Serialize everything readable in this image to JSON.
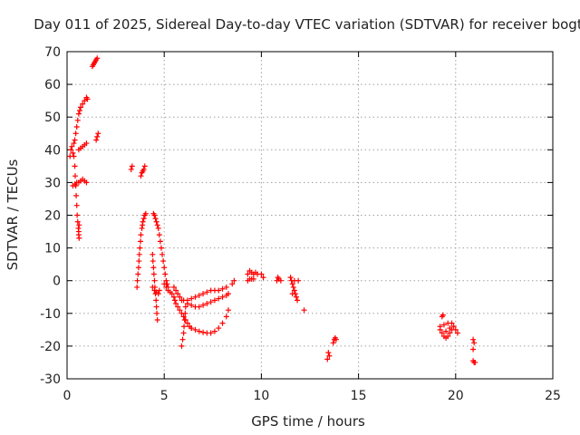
{
  "chart_data": {
    "type": "scatter",
    "title": "Day 011 of 2025, Sidereal Day-to-day VTEC variation (SDTVAR) for receiver bogt",
    "xlabel": "GPS time / hours",
    "ylabel": "SDTVAR / TECUs",
    "xlim": [
      0,
      25
    ],
    "ylim": [
      -30,
      70
    ],
    "xticks": [
      0,
      5,
      10,
      15,
      20,
      25
    ],
    "yticks": [
      -30,
      -20,
      -10,
      0,
      10,
      20,
      30,
      40,
      50,
      60,
      70
    ],
    "grid": true,
    "marker": "plus",
    "color": "#ff0000",
    "series": [
      {
        "name": "SDTVAR",
        "points": [
          [
            0.15,
            38
          ],
          [
            0.2,
            40
          ],
          [
            0.25,
            41
          ],
          [
            0.3,
            39
          ],
          [
            0.35,
            42
          ],
          [
            0.4,
            43
          ],
          [
            0.45,
            45
          ],
          [
            0.5,
            47
          ],
          [
            0.55,
            49
          ],
          [
            0.6,
            51
          ],
          [
            0.65,
            52
          ],
          [
            0.7,
            53
          ],
          [
            0.8,
            54
          ],
          [
            0.9,
            55
          ],
          [
            1.0,
            56
          ],
          [
            1.05,
            55.5
          ],
          [
            0.35,
            38
          ],
          [
            0.4,
            35
          ],
          [
            0.42,
            32
          ],
          [
            0.45,
            29
          ],
          [
            0.47,
            26
          ],
          [
            0.5,
            23
          ],
          [
            0.52,
            20
          ],
          [
            0.55,
            18
          ],
          [
            0.58,
            16
          ],
          [
            0.6,
            15
          ],
          [
            0.6,
            14
          ],
          [
            0.62,
            13
          ],
          [
            0.62,
            17
          ],
          [
            0.6,
            40
          ],
          [
            0.7,
            40.5
          ],
          [
            0.8,
            41
          ],
          [
            0.9,
            41.5
          ],
          [
            1.0,
            42
          ],
          [
            0.3,
            29
          ],
          [
            0.4,
            29.5
          ],
          [
            0.5,
            30
          ],
          [
            0.6,
            30
          ],
          [
            0.7,
            30.5
          ],
          [
            0.8,
            31
          ],
          [
            0.9,
            30.5
          ],
          [
            1.0,
            30
          ],
          [
            1.3,
            65.5
          ],
          [
            1.35,
            66
          ],
          [
            1.4,
            66.5
          ],
          [
            1.45,
            67
          ],
          [
            1.5,
            67.5
          ],
          [
            1.55,
            68
          ],
          [
            1.5,
            43
          ],
          [
            1.55,
            44
          ],
          [
            1.6,
            45
          ],
          [
            3.3,
            34
          ],
          [
            3.35,
            35
          ],
          [
            3.8,
            32
          ],
          [
            3.85,
            33
          ],
          [
            3.9,
            33.5
          ],
          [
            3.95,
            34
          ],
          [
            4.0,
            35
          ],
          [
            3.6,
            -2
          ],
          [
            3.62,
            0
          ],
          [
            3.65,
            2
          ],
          [
            3.68,
            4
          ],
          [
            3.7,
            6
          ],
          [
            3.72,
            8
          ],
          [
            3.75,
            10
          ],
          [
            3.78,
            12
          ],
          [
            3.8,
            14
          ],
          [
            3.85,
            16
          ],
          [
            3.88,
            17
          ],
          [
            3.9,
            18
          ],
          [
            3.95,
            19
          ],
          [
            4.0,
            20
          ],
          [
            4.05,
            20.5
          ],
          [
            4.4,
            8
          ],
          [
            4.42,
            6
          ],
          [
            4.45,
            4
          ],
          [
            4.47,
            2
          ],
          [
            4.5,
            0
          ],
          [
            4.52,
            -2
          ],
          [
            4.55,
            -4
          ],
          [
            4.58,
            -6
          ],
          [
            4.6,
            -8
          ],
          [
            4.62,
            -10
          ],
          [
            4.65,
            -12
          ],
          [
            4.4,
            -2
          ],
          [
            4.5,
            -3
          ],
          [
            4.6,
            -3.5
          ],
          [
            4.7,
            -4
          ],
          [
            4.75,
            -3
          ],
          [
            4.45,
            20.5
          ],
          [
            4.5,
            20
          ],
          [
            4.55,
            19
          ],
          [
            4.6,
            18
          ],
          [
            4.65,
            17
          ],
          [
            4.7,
            16
          ],
          [
            4.75,
            14
          ],
          [
            4.8,
            12
          ],
          [
            4.85,
            10
          ],
          [
            4.9,
            8
          ],
          [
            4.95,
            6
          ],
          [
            5.0,
            4
          ],
          [
            5.05,
            2
          ],
          [
            5.1,
            0
          ],
          [
            5.15,
            -1
          ],
          [
            5.2,
            -2
          ],
          [
            5.0,
            -1
          ],
          [
            5.1,
            -2
          ],
          [
            5.2,
            -3
          ],
          [
            5.3,
            -3.5
          ],
          [
            5.4,
            -4
          ],
          [
            5.5,
            -5
          ],
          [
            5.55,
            -6
          ],
          [
            5.6,
            -7
          ],
          [
            5.7,
            -8
          ],
          [
            5.8,
            -9
          ],
          [
            5.9,
            -10
          ],
          [
            6.0,
            -11
          ],
          [
            6.1,
            -12
          ],
          [
            6.2,
            -13
          ],
          [
            6.3,
            -14
          ],
          [
            6.4,
            -14.5
          ],
          [
            5.5,
            -2
          ],
          [
            5.6,
            -3
          ],
          [
            5.7,
            -4
          ],
          [
            5.8,
            -5
          ],
          [
            5.9,
            -6
          ],
          [
            5.9,
            -20
          ],
          [
            5.95,
            -18
          ],
          [
            6.0,
            -16
          ],
          [
            6.02,
            -14
          ],
          [
            6.05,
            -12
          ],
          [
            6.08,
            -10
          ],
          [
            6.1,
            -8
          ],
          [
            6.0,
            -6
          ],
          [
            6.2,
            -7
          ],
          [
            6.4,
            -7.5
          ],
          [
            6.6,
            -8
          ],
          [
            6.8,
            -8
          ],
          [
            7.0,
            -7.5
          ],
          [
            7.2,
            -7
          ],
          [
            7.4,
            -6.5
          ],
          [
            7.6,
            -6
          ],
          [
            7.8,
            -5.5
          ],
          [
            8.0,
            -5
          ],
          [
            8.2,
            -4.5
          ],
          [
            8.3,
            -4
          ],
          [
            6.4,
            -14.5
          ],
          [
            6.6,
            -15
          ],
          [
            6.8,
            -15.5
          ],
          [
            7.0,
            -15.8
          ],
          [
            7.2,
            -16
          ],
          [
            7.4,
            -16
          ],
          [
            7.6,
            -15.5
          ],
          [
            7.8,
            -14.5
          ],
          [
            8.0,
            -13
          ],
          [
            8.2,
            -11
          ],
          [
            8.3,
            -9
          ],
          [
            6.2,
            -6
          ],
          [
            6.4,
            -5.5
          ],
          [
            6.6,
            -5
          ],
          [
            6.8,
            -4.5
          ],
          [
            7.0,
            -4
          ],
          [
            7.2,
            -3.5
          ],
          [
            7.4,
            -3
          ],
          [
            7.6,
            -3
          ],
          [
            7.8,
            -3
          ],
          [
            8.0,
            -2.5
          ],
          [
            8.2,
            -2
          ],
          [
            8.5,
            -1
          ],
          [
            8.6,
            0
          ],
          [
            9.3,
            2
          ],
          [
            9.4,
            3
          ],
          [
            9.5,
            2.5
          ],
          [
            9.6,
            2
          ],
          [
            9.7,
            2.5
          ],
          [
            9.8,
            2
          ],
          [
            10.0,
            2
          ],
          [
            10.1,
            1
          ],
          [
            9.3,
            0
          ],
          [
            9.4,
            0.5
          ],
          [
            9.5,
            0.5
          ],
          [
            9.6,
            0.5
          ],
          [
            10.8,
            0
          ],
          [
            10.85,
            1
          ],
          [
            10.9,
            0.5
          ],
          [
            11.0,
            0
          ],
          [
            11.5,
            1
          ],
          [
            11.55,
            0
          ],
          [
            11.6,
            -1
          ],
          [
            11.65,
            -2
          ],
          [
            11.7,
            -3
          ],
          [
            11.75,
            -4
          ],
          [
            11.8,
            -5
          ],
          [
            11.85,
            -6
          ],
          [
            11.9,
            0
          ],
          [
            11.6,
            -4
          ],
          [
            11.7,
            0
          ],
          [
            12.2,
            -9
          ],
          [
            13.4,
            -24
          ],
          [
            13.45,
            -22
          ],
          [
            13.5,
            -23
          ],
          [
            13.7,
            -19
          ],
          [
            13.75,
            -18
          ],
          [
            13.8,
            -17.5
          ],
          [
            13.85,
            -18
          ],
          [
            19.3,
            -11
          ],
          [
            19.35,
            -10.5
          ],
          [
            19.2,
            -15
          ],
          [
            19.3,
            -16
          ],
          [
            19.4,
            -17
          ],
          [
            19.5,
            -17.5
          ],
          [
            19.6,
            -17
          ],
          [
            19.7,
            -16
          ],
          [
            19.8,
            -15
          ],
          [
            19.9,
            -14
          ],
          [
            19.8,
            -13
          ],
          [
            19.6,
            -13
          ],
          [
            19.4,
            -13.5
          ],
          [
            19.2,
            -14
          ],
          [
            20.0,
            -15
          ],
          [
            20.1,
            -16
          ],
          [
            19.5,
            -15.5
          ],
          [
            19.7,
            -14.5
          ],
          [
            20.9,
            -18
          ],
          [
            20.95,
            -19
          ],
          [
            20.9,
            -21
          ],
          [
            20.9,
            -24.5
          ],
          [
            20.95,
            -25
          ],
          [
            21.0,
            -25
          ]
        ]
      }
    ]
  }
}
